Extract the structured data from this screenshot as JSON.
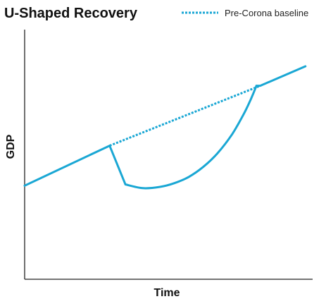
{
  "chart_data": {
    "type": "line",
    "title": "U-Shaped Recovery",
    "xlabel": "Time",
    "ylabel": "GDP",
    "grid": false,
    "legend_position": "top-right",
    "xlim": [
      0,
      100
    ],
    "ylim": [
      0,
      100
    ],
    "series": [
      {
        "key": "actual",
        "style": "solid",
        "color": "#1aa7d4",
        "x": [
          0,
          29.5,
          35,
          41,
          47,
          52,
          57,
          62,
          67,
          72,
          76,
          78.5,
          80.5,
          81.8,
          97.5
        ],
        "y": [
          37.5,
          53.5,
          38.0,
          36.5,
          37.0,
          38.5,
          41.0,
          45.0,
          50.5,
          58.0,
          66.0,
          72.0,
          77.5,
          77.5,
          85.3
        ]
      },
      {
        "key": "baseline",
        "name": "Pre-Corona baseline",
        "style": "dotted",
        "color": "#1aa7d4",
        "x": [
          29.5,
          81.8
        ],
        "y": [
          53.5,
          77.5
        ]
      }
    ]
  }
}
